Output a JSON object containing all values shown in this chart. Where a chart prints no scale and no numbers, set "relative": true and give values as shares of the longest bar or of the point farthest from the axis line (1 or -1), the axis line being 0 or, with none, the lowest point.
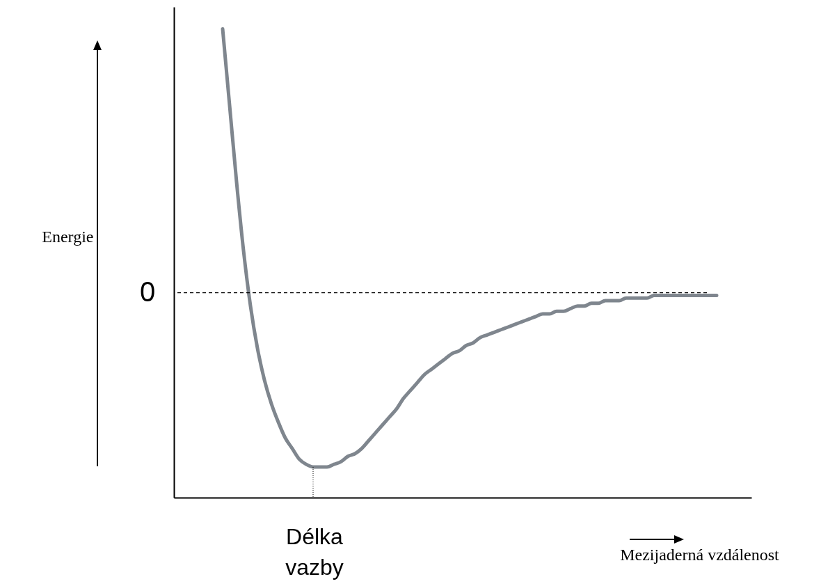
{
  "chart_data": {
    "type": "line",
    "relative": true,
    "xlabel": "Mezijaderná vzdálenost",
    "ylabel": "Energie",
    "categories": [
      null,
      null,
      null,
      null,
      null,
      null,
      null,
      null,
      null,
      null,
      null,
      null,
      null,
      null,
      null,
      null,
      null,
      null,
      null,
      null,
      null,
      null,
      null,
      null,
      null,
      null,
      null,
      null,
      null,
      null,
      null,
      null,
      null,
      null,
      null,
      null,
      null,
      null,
      null,
      null,
      null,
      null,
      null,
      null,
      null,
      null,
      null,
      null,
      null,
      null,
      null,
      null,
      null,
      null,
      null,
      null,
      null,
      null,
      null,
      null,
      null,
      null,
      null,
      null,
      null,
      null,
      null,
      null,
      null,
      null,
      null,
      null,
      null,
      null,
      null,
      null,
      null,
      null,
      null,
      null,
      null,
      null,
      null,
      null
    ],
    "series": [
      {
        "color": "#7f868e",
        "values": [
          null,
          null,
          null,
          null,
          null,
          null,
          null,
          1,
          0.71,
          0.42,
          0.16,
          -0.05,
          -0.21,
          -0.33,
          -0.42,
          -0.49,
          -0.55,
          -0.59,
          -0.63,
          -0.65,
          -0.66,
          -0.66,
          -0.66,
          -0.65,
          -0.64,
          -0.62,
          -0.61,
          -0.59,
          -0.56,
          -0.53,
          -0.5,
          -0.47,
          -0.44,
          -0.4,
          -0.37,
          -0.34,
          -0.31,
          -0.29,
          -0.27,
          -0.25,
          -0.23,
          -0.22,
          -0.2,
          -0.19,
          -0.17,
          -0.16,
          -0.15,
          -0.14,
          -0.13,
          -0.12,
          -0.11,
          -0.1,
          -0.09,
          -0.08,
          -0.08,
          -0.07,
          -0.07,
          -0.06,
          -0.05,
          -0.05,
          -0.04,
          -0.04,
          -0.03,
          -0.03,
          -0.03,
          -0.02,
          -0.02,
          -0.02,
          -0.02,
          -0.01,
          -0.01,
          -0.01,
          -0.01,
          -0.01,
          -0.01,
          -0.01,
          -0.01,
          -0.01,
          -0.01,
          null,
          null,
          null,
          null,
          null
        ]
      }
    ],
    "ref_lines": [
      {
        "axis": "y",
        "value": 0,
        "label": "0",
        "line_style": "dashed",
        "color": "#000000"
      }
    ],
    "annotations": [
      "Délka vazby"
    ],
    "grid": false,
    "marker": "none",
    "line_style": "solid"
  }
}
